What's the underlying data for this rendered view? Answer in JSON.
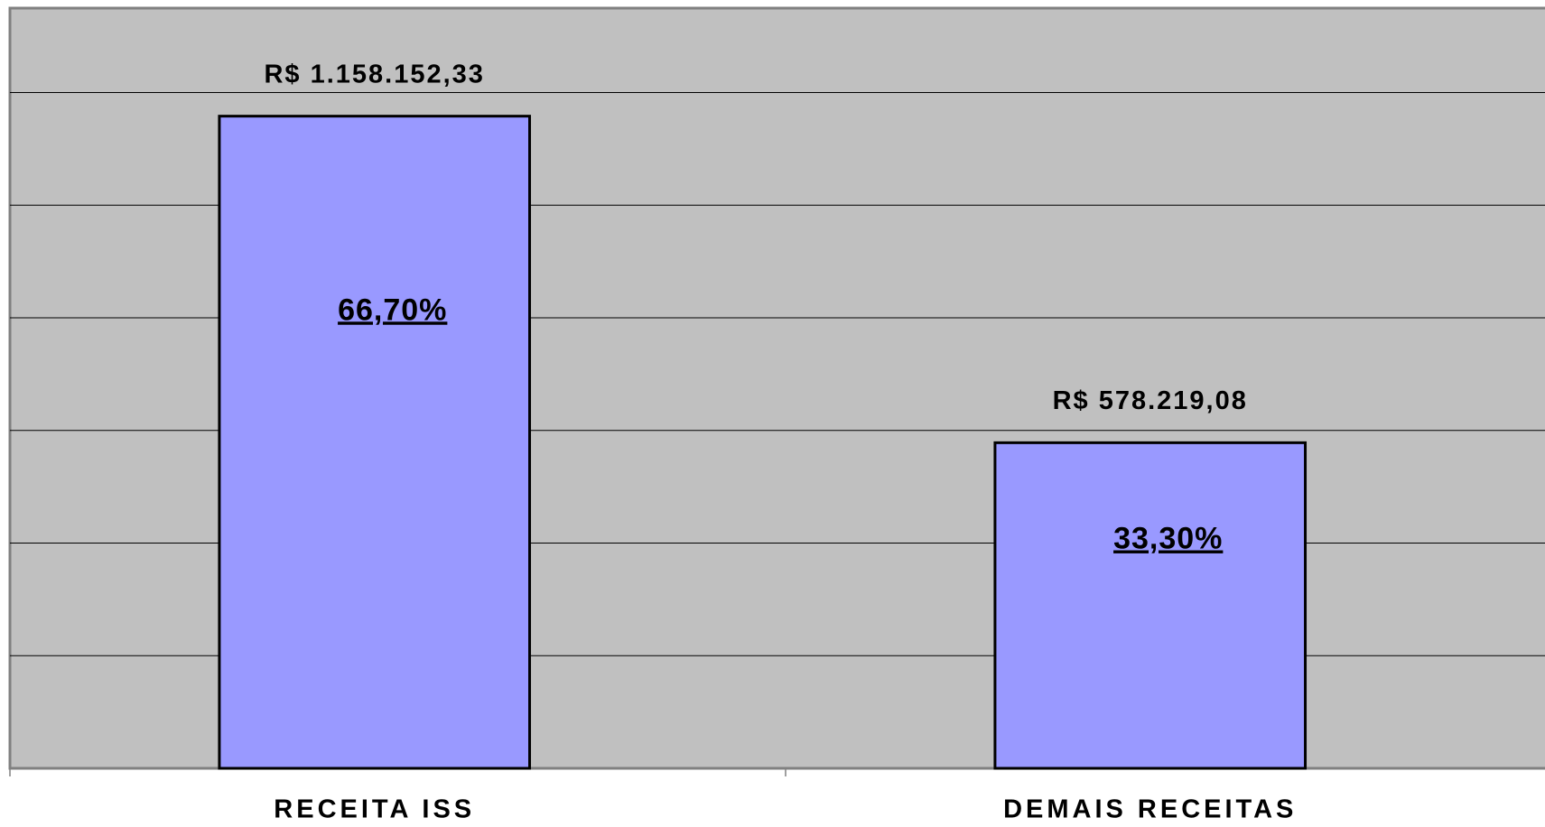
{
  "chart_data": {
    "type": "bar",
    "categories": [
      "RECEITA ISS",
      "DEMAIS RECEITAS"
    ],
    "values": [
      1158152.33,
      578219.08
    ],
    "value_labels": [
      "R$ 1.158.152,33",
      "R$ 578.219,08"
    ],
    "shares": [
      66.7,
      33.3
    ],
    "share_labels": [
      "66,70%",
      "33,30%"
    ],
    "color": "#9999ff",
    "ylim": [
      0,
      1350000
    ],
    "yticks": [
      0,
      200000,
      400000,
      600000,
      800000,
      1000000,
      1200000
    ],
    "grid": true
  }
}
